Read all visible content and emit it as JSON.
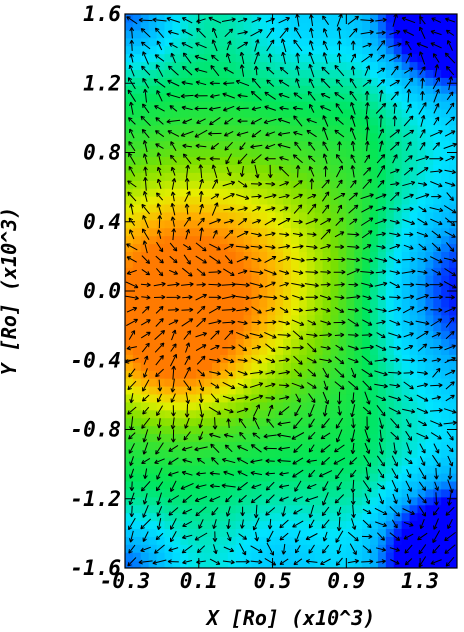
{
  "chart_data": {
    "type": "heatmap",
    "title": "",
    "xlabel": "X [Ro] (x10^3)",
    "ylabel": "Y [Ro] (x10^3)",
    "xlim": [
      -0.3,
      1.5
    ],
    "ylim": [
      -1.6,
      1.6
    ],
    "x_ticks": [
      {
        "value": -0.3,
        "label": "-0.3"
      },
      {
        "value": 0.1,
        "label": "0.1"
      },
      {
        "value": 0.5,
        "label": "0.5"
      },
      {
        "value": 0.9,
        "label": "0.9"
      },
      {
        "value": 1.3,
        "label": "1.3"
      }
    ],
    "y_ticks": [
      {
        "value": 1.6,
        "label": "1.6"
      },
      {
        "value": 1.2,
        "label": "1.2"
      },
      {
        "value": 0.8,
        "label": "0.8"
      },
      {
        "value": 0.4,
        "label": "0.4"
      },
      {
        "value": 0.0,
        "label": "0.0"
      },
      {
        "value": -0.4,
        "label": "-0.4"
      },
      {
        "value": -0.8,
        "label": "-0.8"
      },
      {
        "value": -1.2,
        "label": "-1.2"
      },
      {
        "value": -1.6,
        "label": "-1.6"
      }
    ],
    "grid": false,
    "colormap": "rainbow",
    "color_scale": [
      "#0000ff",
      "#00aaff",
      "#00e5ff",
      "#00e65a",
      "#7be000",
      "#e6ee00",
      "#ffb000",
      "#ff7a00"
    ],
    "sources": [
      {
        "x": -0.03,
        "y": 0.0,
        "strength": 1.0,
        "sigma": 0.38
      },
      {
        "x": -0.03,
        "y": -0.35,
        "strength": 0.5,
        "sigma": 0.22
      },
      {
        "x": 0.45,
        "y": 0.15,
        "strength": 0.3,
        "sigma": 0.45
      },
      {
        "x": 1.45,
        "y": 1.6,
        "strength": -1.0,
        "sigma": 0.28
      },
      {
        "x": 1.45,
        "y": -1.55,
        "strength": -1.0,
        "sigma": 0.28
      },
      {
        "x": 1.5,
        "y": 0.0,
        "strength": -0.45,
        "sigma": 0.35
      },
      {
        "x": -0.3,
        "y": 1.6,
        "strength": -0.55,
        "sigma": 0.22
      },
      {
        "x": -0.3,
        "y": -1.6,
        "strength": -0.55,
        "sigma": 0.22
      },
      {
        "x": 0.65,
        "y": 1.6,
        "strength": -0.3,
        "sigma": 0.28
      },
      {
        "x": 0.55,
        "y": -1.6,
        "strength": -0.35,
        "sigma": 0.28
      }
    ],
    "vector_field": {
      "kind": "velocity arrows",
      "vortices": [
        {
          "x": 0.6,
          "y": 0.65,
          "spin": 1
        },
        {
          "x": 0.6,
          "y": -0.65,
          "spin": -1
        }
      ]
    }
  }
}
